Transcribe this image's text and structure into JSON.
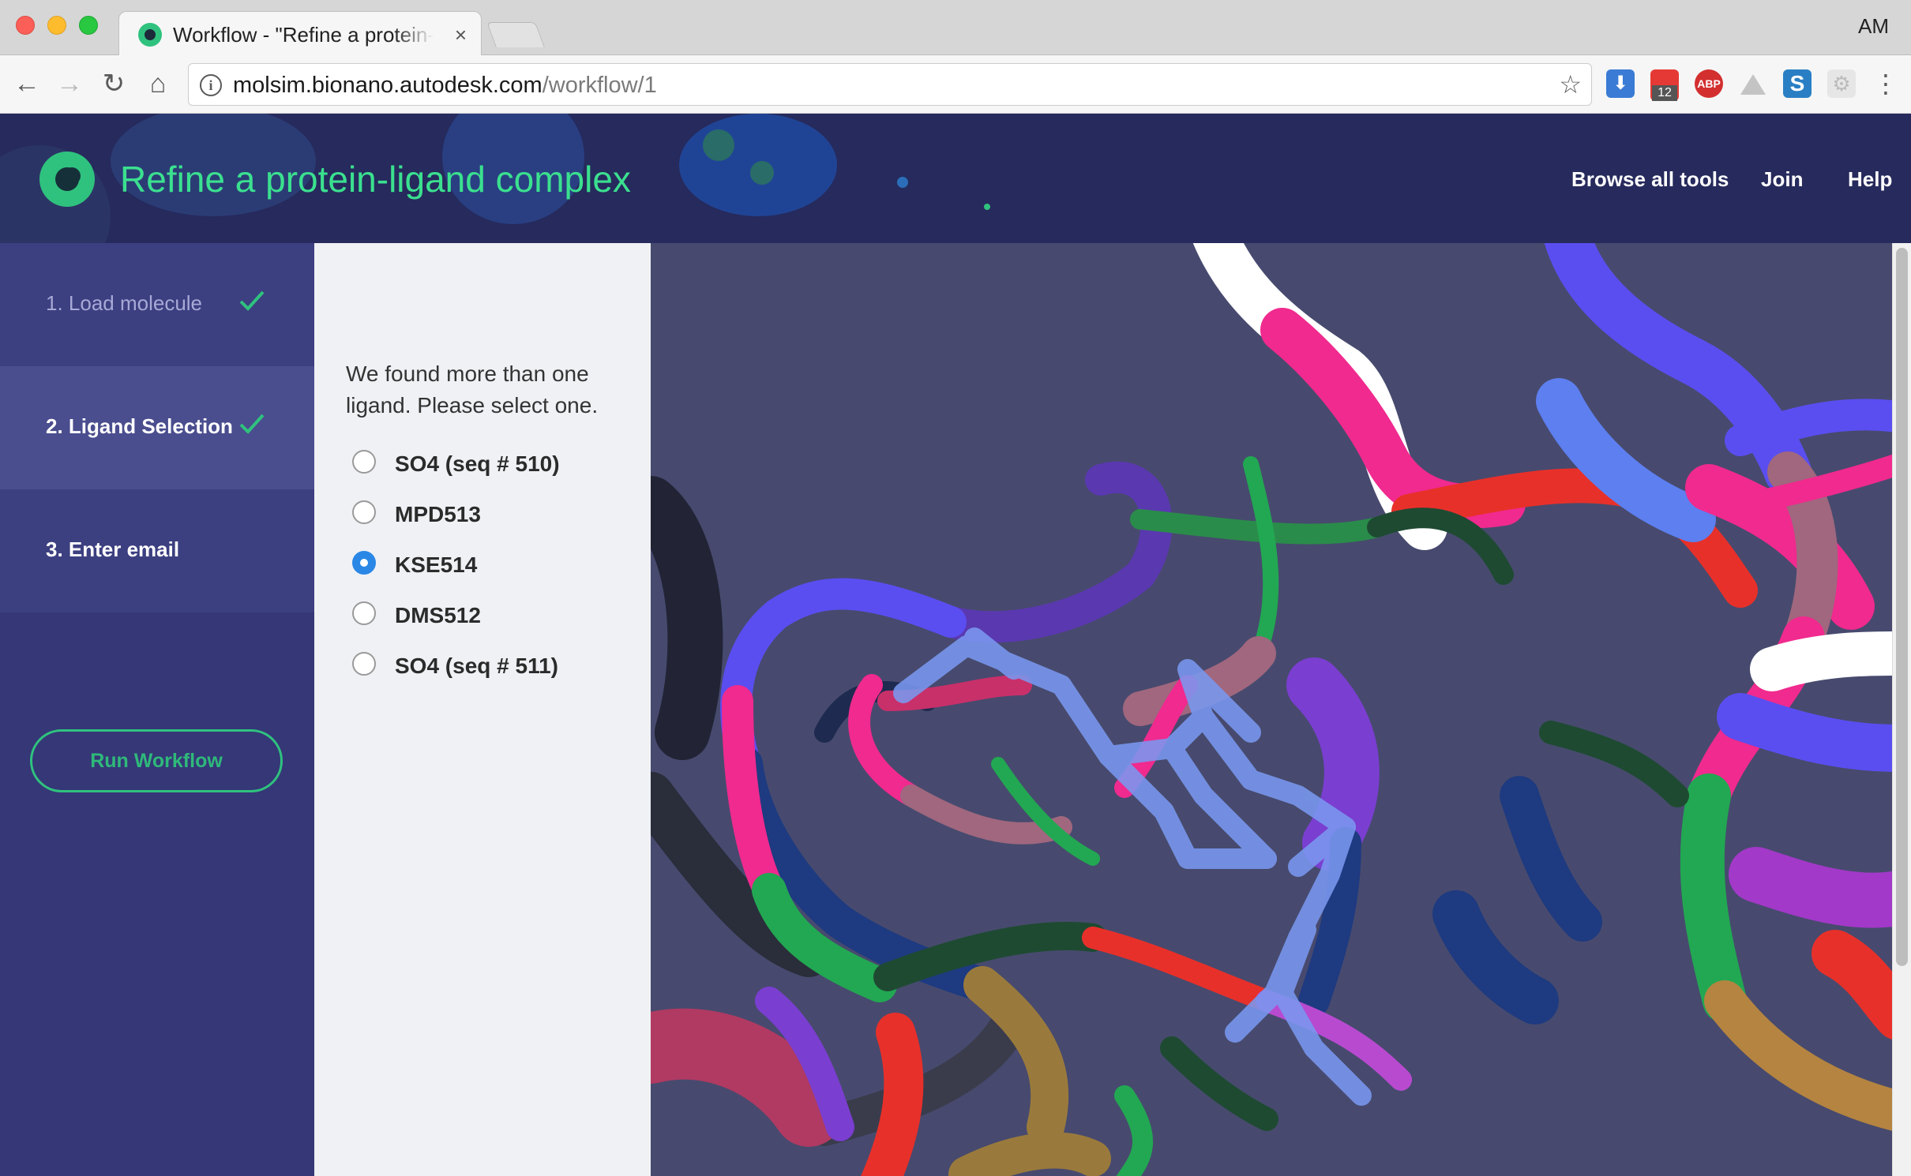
{
  "browser": {
    "tab_title": "Workflow - \"Refine a protein-ligand complex\"",
    "tab_close": "×",
    "profile": "AM",
    "url_host": "molsim.bionano.autodesk.com",
    "url_path": "/workflow/1",
    "info_glyph": "i",
    "calendar_badge": "12",
    "abp_label": "ABP",
    "s_ext_label": "S"
  },
  "header": {
    "title": "Refine a protein-ligand complex",
    "nav": [
      "Browse all tools",
      "Join",
      "Help"
    ]
  },
  "sidebar": {
    "steps": [
      {
        "label": "1. Load molecule",
        "completed": true
      },
      {
        "label": "2. Ligand Selection",
        "completed": true
      },
      {
        "label": "3. Enter email",
        "completed": false
      }
    ],
    "run_button": "Run Workflow"
  },
  "ligand_panel": {
    "prompt": "We found more than one ligand. Please select one.",
    "options": [
      {
        "label": "SO4 (seq # 510)",
        "selected": false
      },
      {
        "label": "MPD513",
        "selected": false
      },
      {
        "label": "KSE514",
        "selected": true
      },
      {
        "label": "DMS512",
        "selected": false
      },
      {
        "label": "SO4 (seq # 511)",
        "selected": false
      }
    ]
  },
  "colors": {
    "accent_green": "#2fc27e",
    "header_bg": "#262a5c",
    "sidebar_bg": "#353777",
    "radio_selected": "#2a87e6",
    "viewer_bg": "#474a6e"
  }
}
